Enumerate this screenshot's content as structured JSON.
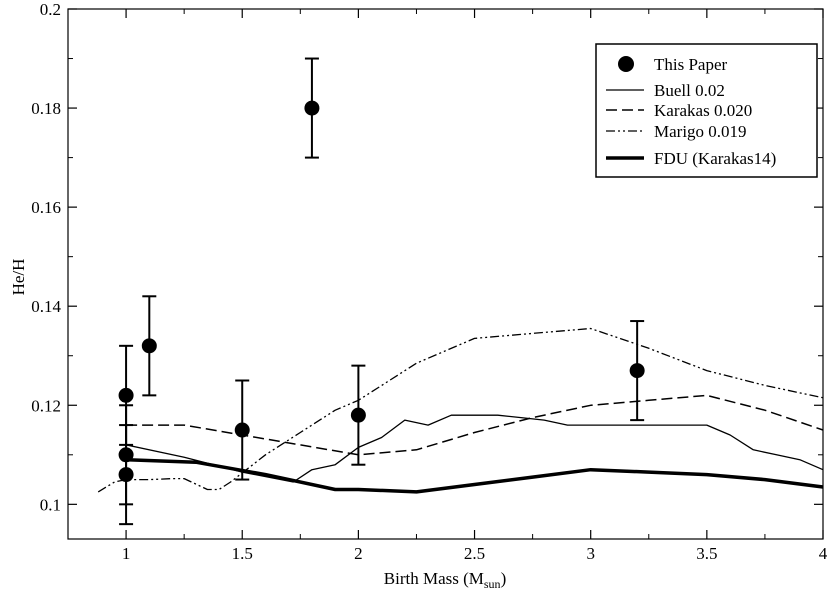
{
  "chart_data": {
    "type": "scatter",
    "xlabel": "Birth Mass (M",
    "xlabel_sub": "sun",
    "xlabel_close": ")",
    "ylabel": "He/H",
    "xlim": [
      0.75,
      4.0
    ],
    "ylim": [
      0.093,
      0.2
    ],
    "x_ticks": [
      1,
      1.5,
      2,
      2.5,
      3,
      3.5,
      4
    ],
    "x_tick_labels": [
      "1",
      "1.5",
      "2",
      "2.5",
      "3",
      "3.5",
      "4"
    ],
    "y_ticks": [
      0.1,
      0.12,
      0.14,
      0.16,
      0.18,
      0.2
    ],
    "y_tick_labels": [
      "0.1",
      "0.12",
      "0.14",
      "0.16",
      "0.18",
      "0.2"
    ],
    "grid": false,
    "legend_position": "top-right",
    "points": {
      "name": "This Paper",
      "data": [
        {
          "x": 1.0,
          "y": 0.122,
          "err": 0.01
        },
        {
          "x": 1.0,
          "y": 0.11,
          "err": 0.01
        },
        {
          "x": 1.0,
          "y": 0.106,
          "err": 0.01
        },
        {
          "x": 1.1,
          "y": 0.132,
          "err": 0.01
        },
        {
          "x": 1.5,
          "y": 0.115,
          "err": 0.01
        },
        {
          "x": 1.8,
          "y": 0.18,
          "err": 0.01
        },
        {
          "x": 2.0,
          "y": 0.118,
          "err": 0.01
        },
        {
          "x": 3.2,
          "y": 0.127,
          "err": 0.01
        }
      ]
    },
    "series": [
      {
        "name": "Buell 0.02",
        "style": "solid",
        "x": [
          1.0,
          1.25,
          1.5,
          1.72,
          1.8,
          1.9,
          2.0,
          2.1,
          2.2,
          2.3,
          2.4,
          2.5,
          2.6,
          2.7,
          2.8,
          2.9,
          3.0,
          3.1,
          3.2,
          3.3,
          3.4,
          3.5,
          3.6,
          3.7,
          3.8,
          3.9,
          4.0
        ],
        "y": [
          0.112,
          0.1095,
          0.1065,
          0.1045,
          0.107,
          0.108,
          0.1115,
          0.1135,
          0.117,
          0.116,
          0.118,
          0.118,
          0.118,
          0.1175,
          0.117,
          0.116,
          0.116,
          0.116,
          0.116,
          0.116,
          0.116,
          0.116,
          0.114,
          0.111,
          0.11,
          0.109,
          0.107
        ]
      },
      {
        "name": "Karakas 0.020",
        "style": "dashed",
        "x": [
          1.0,
          1.25,
          1.5,
          1.75,
          2.0,
          2.25,
          2.5,
          2.75,
          3.0,
          3.25,
          3.5,
          3.75,
          4.0
        ],
        "y": [
          0.116,
          0.116,
          0.114,
          0.112,
          0.11,
          0.111,
          0.1145,
          0.1175,
          0.12,
          0.121,
          0.122,
          0.119,
          0.115
        ]
      },
      {
        "name": "Marigo 0.019",
        "style": "dashdot",
        "x": [
          0.88,
          0.95,
          1.0,
          1.1,
          1.2,
          1.25,
          1.35,
          1.4,
          1.45,
          1.6,
          1.75,
          1.9,
          2.0,
          2.25,
          2.5,
          2.75,
          3.0,
          3.25,
          3.5,
          3.75,
          4.0
        ],
        "y": [
          0.1025,
          0.1045,
          0.105,
          0.105,
          0.1052,
          0.1052,
          0.103,
          0.103,
          0.1045,
          0.11,
          0.1145,
          0.119,
          0.121,
          0.1285,
          0.1335,
          0.1345,
          0.1355,
          0.1315,
          0.127,
          0.124,
          0.1215
        ]
      },
      {
        "name": "FDU (Karakas14)",
        "style": "thick",
        "x": [
          1.0,
          1.3,
          1.6,
          1.9,
          2.0,
          2.25,
          2.5,
          2.75,
          3.0,
          3.25,
          3.5,
          3.75,
          4.0
        ],
        "y": [
          0.109,
          0.1085,
          0.106,
          0.103,
          0.103,
          0.1025,
          0.104,
          0.1055,
          0.107,
          0.1065,
          0.106,
          0.105,
          0.1035
        ]
      }
    ]
  }
}
